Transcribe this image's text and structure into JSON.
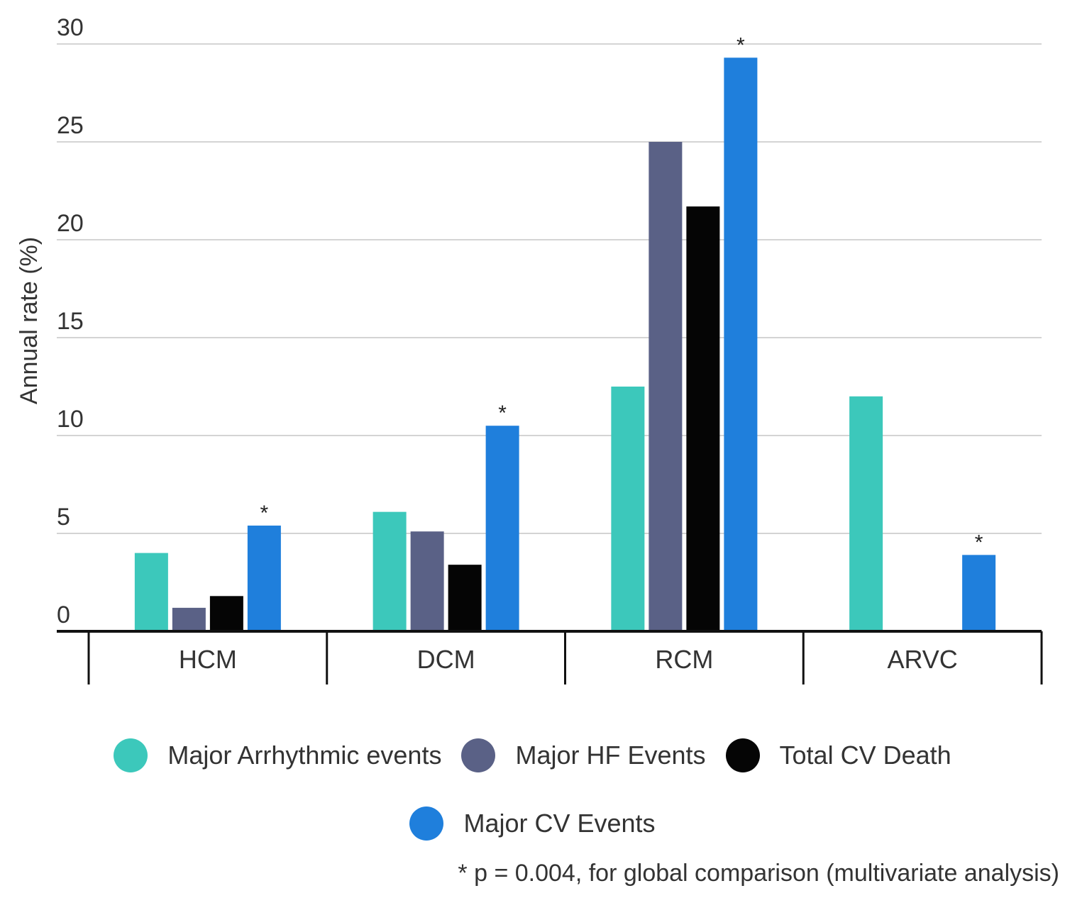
{
  "chart_data": {
    "type": "bar",
    "title": "",
    "xlabel": "",
    "ylabel": "Annual rate (%)",
    "ylim": [
      0,
      30
    ],
    "yticks": [
      0,
      5,
      10,
      15,
      20,
      25,
      30
    ],
    "grid": true,
    "legend_position": "bottom",
    "categories": [
      "HCM",
      "DCM",
      "RCM",
      "ARVC"
    ],
    "series": [
      {
        "name": "Major Arrhythmic events",
        "color": "#3cc8bb",
        "values": [
          4.0,
          6.1,
          12.5,
          12.0
        ]
      },
      {
        "name": "Major HF Events",
        "color": "#5a6186",
        "values": [
          1.2,
          5.1,
          25.0,
          0
        ]
      },
      {
        "name": "Total CV Death",
        "color": "#050505",
        "values": [
          1.8,
          3.4,
          21.7,
          0
        ]
      },
      {
        "name": "Major CV Events",
        "color": "#1f7fdc",
        "values": [
          5.4,
          10.5,
          29.3,
          3.9
        ]
      }
    ],
    "significance_marker": "*",
    "significant_series": "Major CV Events",
    "footnote": "* p = 0.004, for global comparison (multivariate analysis)"
  }
}
